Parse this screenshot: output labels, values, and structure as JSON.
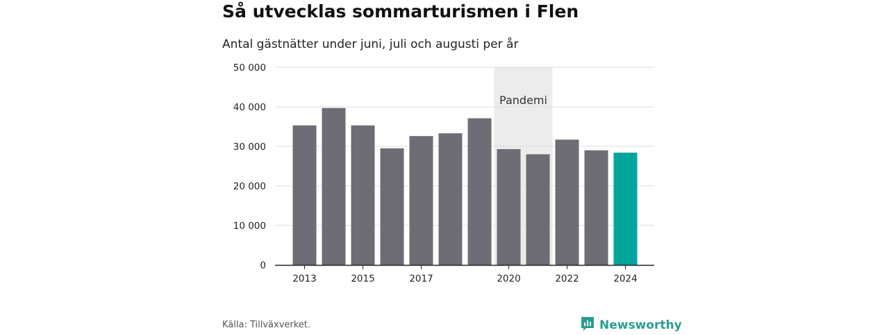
{
  "title": "Så utvecklas sommarturismen i Flen",
  "subtitle": "Antal gästnätter under juni, juli och augusti per år",
  "source": "Källa: Tillväxverket.",
  "brand": {
    "name": "Newsworthy",
    "icon": "newsworthy-logo-icon",
    "color": "#2a9d8f"
  },
  "colors": {
    "bar": "#6e6d75",
    "highlight": "#00a59c",
    "band": "#ececec",
    "grid": "#dddddd"
  },
  "chart_data": {
    "type": "bar",
    "categories": [
      "2013",
      "2014",
      "2015",
      "2016",
      "2017",
      "2018",
      "2019",
      "2020",
      "2021",
      "2022",
      "2023",
      "2024"
    ],
    "values": [
      35300,
      39700,
      35300,
      29500,
      32600,
      33300,
      37100,
      29300,
      28000,
      31700,
      29000,
      28400
    ],
    "highlight_index": 11,
    "ylim": [
      0,
      50000
    ],
    "yticks": [
      0,
      10000,
      20000,
      30000,
      40000,
      50000
    ],
    "ytick_labels": [
      "0",
      "10 000",
      "20 000",
      "30 000",
      "40 000",
      "50 000"
    ],
    "xtick_labels": [
      "2013",
      "2015",
      "2017",
      "2020",
      "2022",
      "2024"
    ],
    "annotation": {
      "label": "Pandemi",
      "from": "2020",
      "to": "2021"
    },
    "xlabel": "",
    "ylabel": "",
    "grid": true
  }
}
